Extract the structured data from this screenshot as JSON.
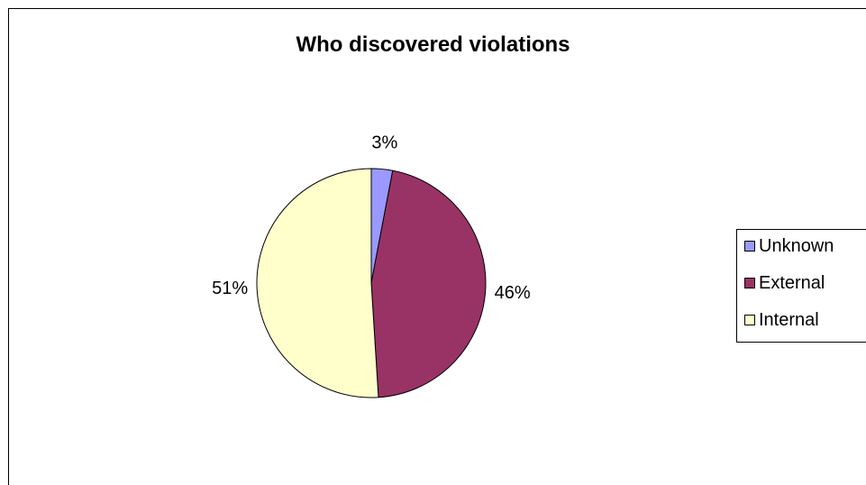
{
  "chart_data": {
    "type": "pie",
    "title": "Who discovered violations",
    "categories": [
      "Unknown",
      "External",
      "Internal"
    ],
    "values": [
      3,
      46,
      51
    ],
    "labels": [
      "3%",
      "46%",
      "51%"
    ],
    "colors": [
      "#9999ff",
      "#993366",
      "#ffffcc"
    ],
    "legend_position": "right"
  }
}
